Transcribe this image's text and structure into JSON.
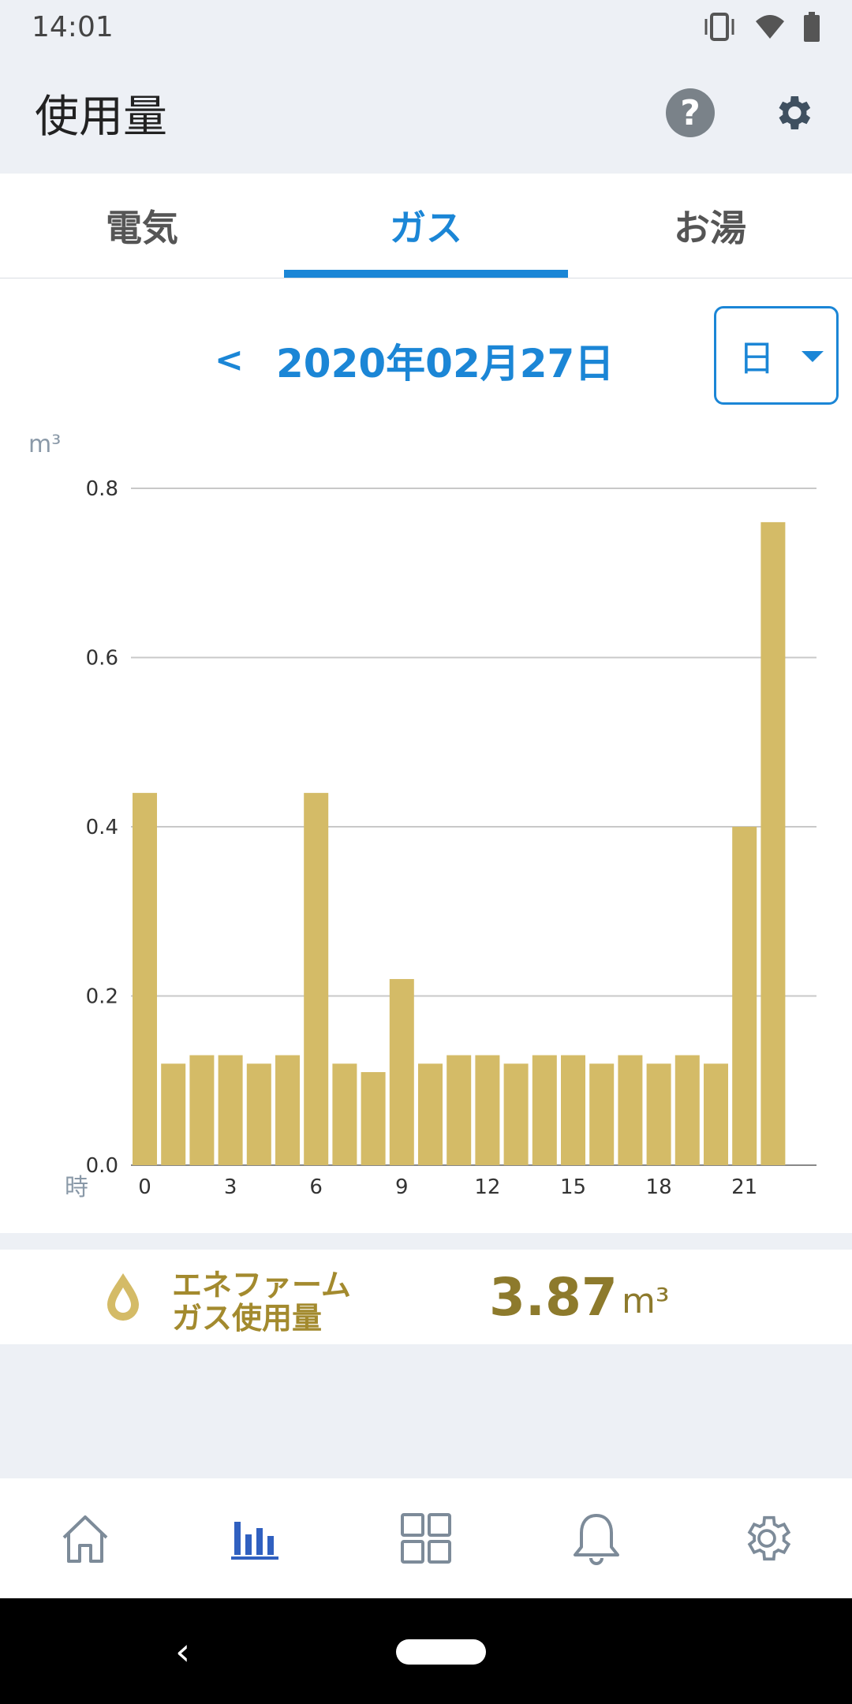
{
  "status": {
    "time": "14:01"
  },
  "appbar": {
    "title": "使用量",
    "help_icon": "?"
  },
  "tabs": [
    {
      "label": "電気",
      "active": false
    },
    {
      "label": "ガス",
      "active": true
    },
    {
      "label": "お湯",
      "active": false
    }
  ],
  "date_nav": {
    "prev": "<",
    "date": "2020年02月27日",
    "period": "日"
  },
  "chart_data": {
    "type": "bar",
    "y_unit": "m³",
    "x_unit": "時",
    "ylim": [
      0,
      0.8
    ],
    "yticks": [
      "0.0",
      "0.2",
      "0.4",
      "0.6",
      "0.8"
    ],
    "xticks": [
      {
        "index": 0,
        "label": "0"
      },
      {
        "index": 3,
        "label": "3"
      },
      {
        "index": 6,
        "label": "6"
      },
      {
        "index": 9,
        "label": "9"
      },
      {
        "index": 12,
        "label": "12"
      },
      {
        "index": 15,
        "label": "15"
      },
      {
        "index": 18,
        "label": "18"
      },
      {
        "index": 21,
        "label": "21"
      }
    ],
    "x": [
      0,
      1,
      2,
      3,
      4,
      5,
      6,
      7,
      8,
      9,
      10,
      11,
      12,
      13,
      14,
      15,
      16,
      17,
      18,
      19,
      20,
      21,
      22
    ],
    "values": [
      0.44,
      0.12,
      0.13,
      0.13,
      0.12,
      0.13,
      0.44,
      0.12,
      0.11,
      0.22,
      0.12,
      0.13,
      0.13,
      0.12,
      0.13,
      0.13,
      0.12,
      0.13,
      0.12,
      0.13,
      0.12,
      0.4,
      0.76
    ],
    "bar_color": "#d4bb67",
    "grid": true
  },
  "summary": {
    "label_line1": "エネファーム",
    "label_line2": "ガス使用量",
    "value": "3.87",
    "unit": "m³"
  },
  "colors": {
    "accent": "#1b86d6",
    "gold": "#a38a2e"
  }
}
